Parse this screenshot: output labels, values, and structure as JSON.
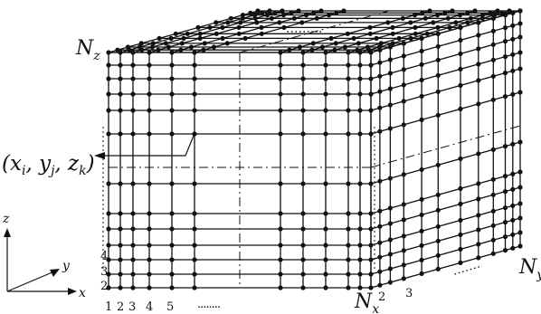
{
  "figure": {
    "corner_labels": {
      "nz": "N",
      "nz_sub": "z",
      "nx": "N",
      "nx_sub": "x",
      "ny": "N",
      "ny_sub": "y"
    },
    "node_label": {
      "prefix": "(x",
      "i": "i",
      "yj": "y",
      "j": "j",
      "zk": "z",
      "k": "k",
      "suffix": ")"
    },
    "axis_labels": {
      "x": "x",
      "y": "y",
      "z": "z"
    },
    "front_x_ticks": [
      "1",
      "2",
      "3",
      "4",
      "5"
    ],
    "front_z_ticks": [
      "2",
      "3",
      "4"
    ],
    "side_y_ticks": [
      "2",
      "3"
    ],
    "continuation": "........"
  }
}
